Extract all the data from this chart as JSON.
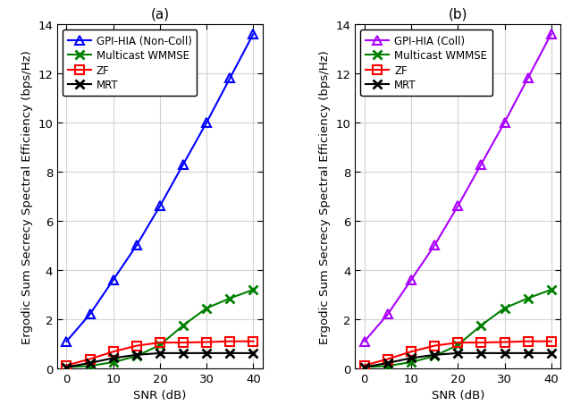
{
  "snr": [
    0,
    5,
    10,
    15,
    20,
    25,
    30,
    35,
    40
  ],
  "subplot_a": {
    "title": "(a)",
    "gpi_hia_label": "GPI-HIA (Non-Coll)",
    "gpi_hia_color": "#0000FF",
    "gpi_hia_values": [
      1.1,
      2.2,
      3.6,
      5.0,
      6.6,
      8.3,
      10.0,
      11.8,
      13.6
    ],
    "multicast_label": "Multicast WMMSE",
    "multicast_color": "#008000",
    "multicast_values": [
      0.05,
      0.1,
      0.25,
      0.5,
      0.95,
      1.75,
      2.45,
      2.85,
      3.2
    ],
    "zf_label": "ZF",
    "zf_color": "#FF0000",
    "zf_values": [
      0.12,
      0.38,
      0.68,
      0.92,
      1.05,
      1.05,
      1.07,
      1.1,
      1.1
    ],
    "mrt_label": "MRT",
    "mrt_color": "#000000",
    "mrt_values": [
      0.05,
      0.22,
      0.42,
      0.55,
      0.62,
      0.62,
      0.62,
      0.62,
      0.62
    ]
  },
  "subplot_b": {
    "title": "(b)",
    "gpi_hia_label": "GPI-HIA (Coll)",
    "gpi_hia_color": "#AA00FF",
    "gpi_hia_values": [
      1.1,
      2.2,
      3.6,
      5.0,
      6.6,
      8.3,
      10.0,
      11.8,
      13.6
    ],
    "multicast_label": "Multicast WMMSE",
    "multicast_color": "#008000",
    "multicast_values": [
      0.05,
      0.1,
      0.25,
      0.5,
      0.95,
      1.75,
      2.45,
      2.85,
      3.2
    ],
    "zf_label": "ZF",
    "zf_color": "#FF0000",
    "zf_values": [
      0.12,
      0.38,
      0.68,
      0.92,
      1.05,
      1.05,
      1.07,
      1.1,
      1.1
    ],
    "mrt_label": "MRT",
    "mrt_color": "#000000",
    "mrt_values": [
      0.05,
      0.22,
      0.42,
      0.55,
      0.62,
      0.62,
      0.62,
      0.62,
      0.62
    ]
  },
  "ylabel": "Ergodic Sum Secrecy Spectral Efficiency (bps/Hz)",
  "xlabel": "SNR (dB)",
  "ylim": [
    0,
    14
  ],
  "yticks": [
    0,
    2,
    4,
    6,
    8,
    10,
    12,
    14
  ],
  "xlim": [
    -2,
    42
  ],
  "xticks": [
    0,
    10,
    20,
    30,
    40
  ],
  "grid_color": "#D3D3D3",
  "background_color": "#FFFFFF",
  "marker_size": 7,
  "linewidth": 1.5,
  "legend_fontsize": 8.5,
  "axis_fontsize": 9.5,
  "title_fontsize": 11
}
